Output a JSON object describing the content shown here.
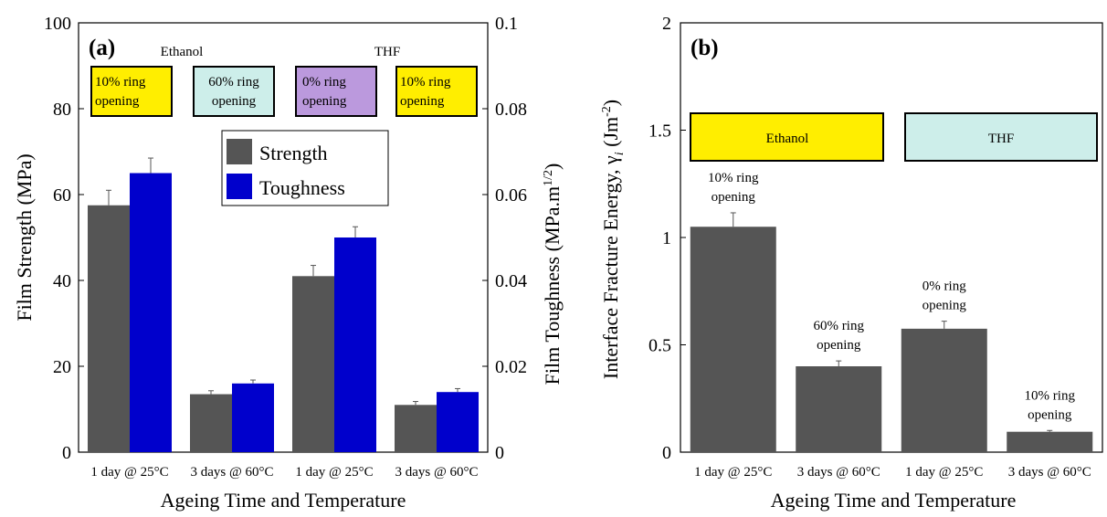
{
  "colors": {
    "strength": "#555555",
    "toughness": "#0000cc",
    "ethanol_box": "#ffee00",
    "thf_box": "#cdeeea",
    "purple_box": "#bb99dd",
    "gray_bar": "#555555"
  },
  "chart_data": [
    {
      "type": "bar",
      "panel_label": "(a)",
      "categories": [
        "1 day @ 25°C",
        "3 days @ 60°C",
        "1 day @ 25°C",
        "3 days @ 60°C"
      ],
      "xlabel": "Ageing Time and Temperature",
      "ylabel": "Film Strength (MPa)",
      "ylim": [
        0,
        100
      ],
      "yticks": [
        0,
        20,
        40,
        60,
        80,
        100
      ],
      "y2label": "Film Toughness (MPa.m",
      "y2label_sup": "1/2",
      "y2label_end": ")",
      "y2lim": [
        0,
        0.1
      ],
      "y2ticks": [
        "0",
        "0.02",
        "0.04",
        "0.06",
        "0.08",
        "0.1"
      ],
      "legend_position": "center",
      "series": [
        {
          "name": "Strength",
          "axis": "left",
          "values": [
            57.5,
            13.5,
            41,
            11
          ],
          "errors": [
            3.5,
            0.8,
            2.5,
            0.8
          ]
        },
        {
          "name": "Toughness",
          "axis": "right",
          "values": [
            0.065,
            0.016,
            0.05,
            0.014
          ],
          "errors": [
            0.0035,
            0.0008,
            0.0025,
            0.0008
          ]
        }
      ],
      "group_labels": [
        "Ethanol",
        "THF"
      ],
      "annotations": [
        {
          "line1": "10% ring",
          "line2": "opening",
          "color_key": "ethanol_box"
        },
        {
          "line1": "60% ring",
          "line2": "opening",
          "color_key": "thf_box"
        },
        {
          "line1": "0% ring",
          "line2": "opening",
          "color_key": "purple_box"
        },
        {
          "line1": "10% ring",
          "line2": "opening",
          "color_key": "ethanol_box"
        }
      ]
    },
    {
      "type": "bar",
      "panel_label": "(b)",
      "categories": [
        "1 day @ 25°C",
        "3 days @ 60°C",
        "1 day @ 25°C",
        "3 days @ 60°C"
      ],
      "xlabel": "Ageing Time and Temperature",
      "ylabel": "Interface Fracture Energy, γ",
      "ylabel_sub": "i",
      "ylabel_unit": " (Jm",
      "ylabel_sup": "-2",
      "ylabel_end": ")",
      "ylim": [
        0,
        2
      ],
      "yticks": [
        "0",
        "0.5",
        "1",
        "1.5",
        "2"
      ],
      "series": [
        {
          "values": [
            1.05,
            0.4,
            0.575,
            0.095
          ],
          "errors": [
            0.065,
            0.025,
            0.035,
            0.006
          ]
        }
      ],
      "group_labels": [
        "Ethanol",
        "THF"
      ],
      "annotations": [
        {
          "line1": "10% ring",
          "line2": "opening"
        },
        {
          "line1": "60% ring",
          "line2": "opening"
        },
        {
          "line1": "0% ring",
          "line2": "opening"
        },
        {
          "line1": "10% ring",
          "line2": "opening"
        }
      ]
    }
  ]
}
